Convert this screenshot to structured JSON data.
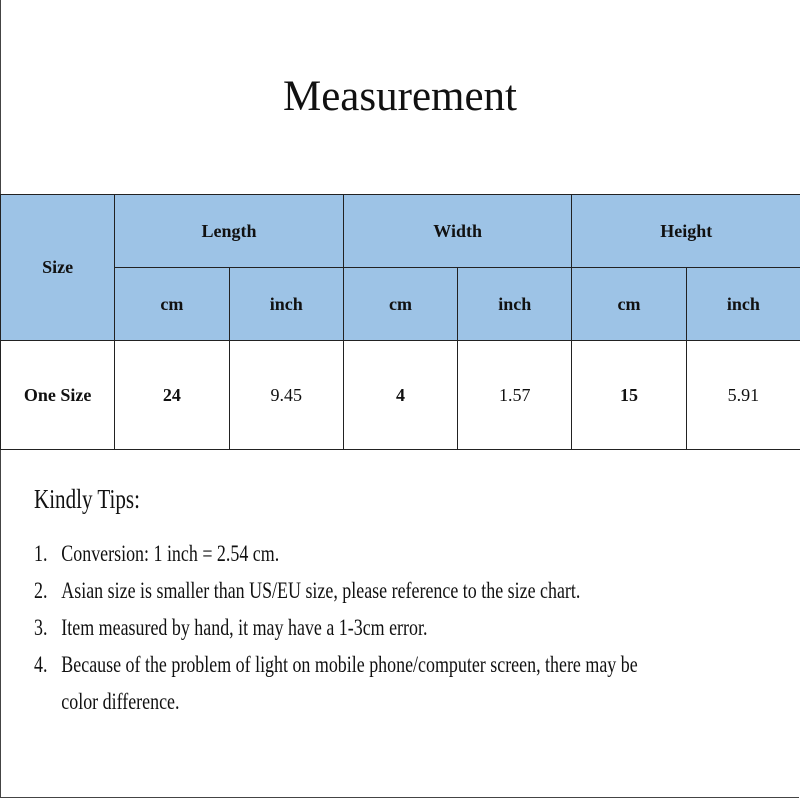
{
  "title": "Measurement",
  "table": {
    "size_header": "Size",
    "groups": [
      "Length",
      "Width",
      "Height"
    ],
    "units": [
      "cm",
      "inch",
      "cm",
      "inch",
      "cm",
      "inch"
    ],
    "rows": [
      {
        "size": "One Size",
        "values": [
          "24",
          "9.45",
          "4",
          "1.57",
          "15",
          "5.91"
        ]
      }
    ],
    "header_color": "#9dc3e6"
  },
  "tips": {
    "title": "Kindly Tips:",
    "items": [
      {
        "num": "1.",
        "text": "Conversion: 1 inch = 2.54 cm."
      },
      {
        "num": "2.",
        "text": "Asian size is smaller than US/EU size, please reference to the size chart."
      },
      {
        "num": "3.",
        "text": "Item measured by hand, it may have a 1-3cm error."
      },
      {
        "num": "4.",
        "text": "Because of the problem of light on mobile phone/computer screen, there may be",
        "continuation": "color difference."
      }
    ]
  }
}
